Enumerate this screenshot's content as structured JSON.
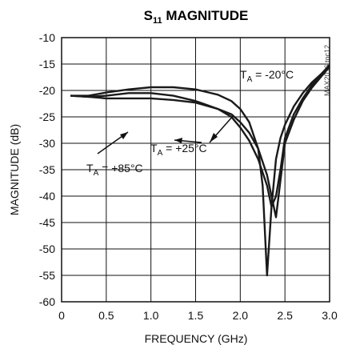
{
  "chart_data": {
    "type": "line",
    "title": {
      "main": "S",
      "sub": "11",
      "rest": " MAGNITUDE"
    },
    "xlabel": "FREQUENCY (GHz)",
    "ylabel": "MAGNITUDE (dB)",
    "xlim": [
      0,
      3.0
    ],
    "ylim": [
      -60,
      -10
    ],
    "x_ticks": [
      "0",
      "0.5",
      "1.0",
      "1.5",
      "2.0",
      "2.5",
      "3.0"
    ],
    "y_ticks": [
      "-10",
      "-15",
      "-20",
      "-25",
      "-30",
      "-35",
      "-40",
      "-45",
      "-50",
      "-55",
      "-60"
    ],
    "grid": true,
    "figure_code": "MAX2016 toc12",
    "series": [
      {
        "name": "T_A = -20°C",
        "x": [
          0.1,
          0.3,
          0.5,
          0.75,
          1.0,
          1.25,
          1.5,
          1.75,
          1.9,
          2.0,
          2.1,
          2.2,
          2.25,
          2.3,
          2.35,
          2.4,
          2.45,
          2.5,
          2.6,
          2.7,
          2.8,
          2.9,
          3.0
        ],
        "y": [
          -21.0,
          -21.0,
          -20.4,
          -19.8,
          -19.4,
          -19.4,
          -19.8,
          -20.8,
          -22.0,
          -23.5,
          -26.0,
          -31.0,
          -38.0,
          -55.0,
          -42.0,
          -33.0,
          -29.0,
          -26.5,
          -23.0,
          -20.5,
          -18.5,
          -17.0,
          -15.5
        ]
      },
      {
        "name": "T_A = +25°C",
        "x": [
          0.1,
          0.3,
          0.5,
          0.75,
          1.0,
          1.25,
          1.5,
          1.75,
          1.9,
          2.0,
          2.1,
          2.2,
          2.3,
          2.35,
          2.4,
          2.45,
          2.5,
          2.6,
          2.7,
          2.8,
          2.9,
          3.0
        ],
        "y": [
          -21.0,
          -21.2,
          -21.5,
          -21.5,
          -21.5,
          -21.8,
          -22.3,
          -23.5,
          -24.5,
          -26.0,
          -28.0,
          -31.0,
          -36.0,
          -40.0,
          -44.0,
          -37.0,
          -30.0,
          -25.5,
          -22.0,
          -19.5,
          -17.5,
          -15.5
        ]
      },
      {
        "name": "T_A = +85°C",
        "x": [
          0.1,
          0.3,
          0.5,
          0.75,
          1.0,
          1.25,
          1.5,
          1.75,
          1.9,
          2.0,
          2.1,
          2.2,
          2.3,
          2.35,
          2.4,
          2.45,
          2.5,
          2.6,
          2.7,
          2.8,
          2.9,
          3.0
        ],
        "y": [
          -21.0,
          -21.2,
          -21.0,
          -20.5,
          -20.5,
          -21.0,
          -22.0,
          -23.5,
          -25.0,
          -27.0,
          -29.5,
          -33.0,
          -38.0,
          -42.0,
          -40.0,
          -35.0,
          -29.0,
          -24.5,
          -21.5,
          -19.0,
          -17.0,
          -15.2
        ]
      }
    ],
    "annotations": [
      {
        "prefix": "T",
        "sub": "A",
        "text": " = -20°C"
      },
      {
        "prefix": "T",
        "sub": "A",
        "text": " = +85°C"
      },
      {
        "prefix": "T",
        "sub": "A",
        "text": " = +25°C"
      }
    ]
  }
}
